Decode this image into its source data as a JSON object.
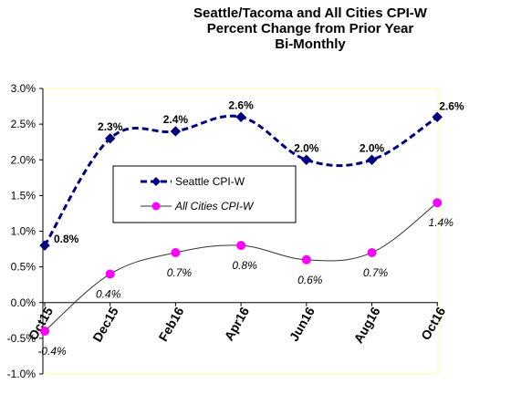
{
  "chart_data": {
    "type": "line",
    "title_lines": [
      "Seattle/Tacoma and All Cities CPI-W",
      "Percent Change from Prior Year",
      "Bi-Monthly"
    ],
    "categories": [
      "Oct15",
      "Dec15",
      "Feb16",
      "Apr16",
      "Jun16",
      "Aug16",
      "Oct16"
    ],
    "ylim": [
      -1.0,
      3.0
    ],
    "yticks": [
      "-1.0%",
      "-0.5%",
      "0.0%",
      "0.5%",
      "1.0%",
      "1.5%",
      "2.0%",
      "2.5%",
      "3.0%"
    ],
    "grid": false,
    "legend_position": "center-left",
    "series": [
      {
        "name": "Seattle CPI-W",
        "values": [
          0.8,
          2.3,
          2.4,
          2.6,
          2.0,
          2.0,
          2.6
        ],
        "labels": [
          "0.8%",
          "2.3%",
          "2.4%",
          "2.6%",
          "2.0%",
          "2.0%",
          "2.6%"
        ],
        "color": "#000080",
        "marker": "diamond",
        "line": "dashed"
      },
      {
        "name": "All Cities CPI-W",
        "values": [
          -0.4,
          0.4,
          0.7,
          0.8,
          0.6,
          0.7,
          1.4
        ],
        "labels": [
          "-0.4%",
          "0.4%",
          "0.7%",
          "0.8%",
          "0.6%",
          "0.7%",
          "1.4%"
        ],
        "color": "#ff00ff",
        "line_color": "#333333",
        "marker": "circle",
        "line": "solid"
      }
    ],
    "plot_area_border": "#ffff99"
  }
}
